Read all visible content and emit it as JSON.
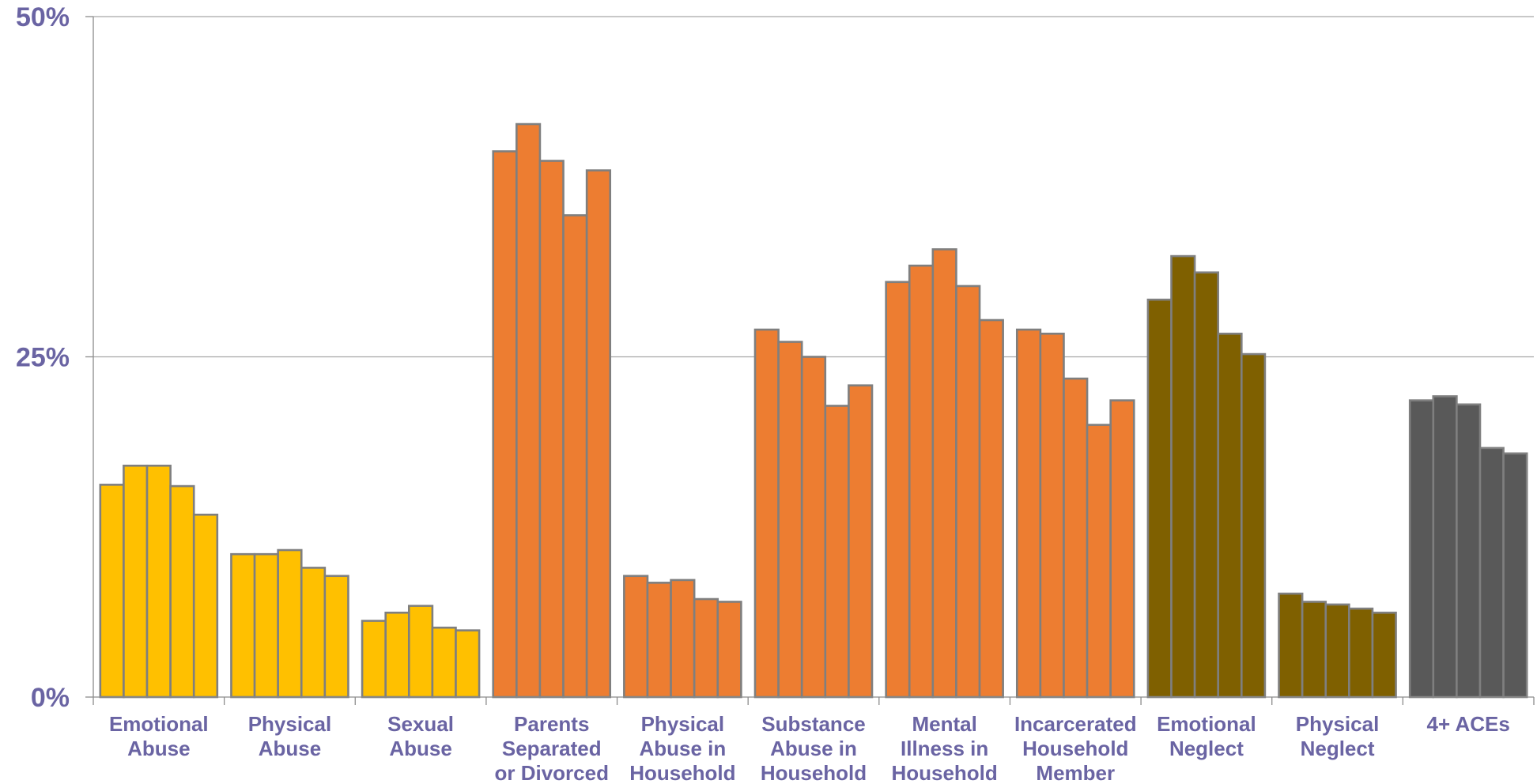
{
  "chart_data": {
    "type": "bar",
    "title": "",
    "xlabel": "",
    "ylabel": "",
    "ylim": [
      0,
      50
    ],
    "ytick_values": [
      0,
      25,
      50
    ],
    "ytick_labels": [
      "0%",
      "25%",
      "50%"
    ],
    "grid": "horizontal major gridlines",
    "legend": "none",
    "bar_edge_color": "#7f7f7f",
    "groups": [
      {
        "label_lines": [
          "Emotional",
          "Abuse"
        ],
        "color": "#ffc000",
        "values": [
          15.6,
          17.0,
          17.0,
          15.5,
          13.4
        ]
      },
      {
        "label_lines": [
          "Physical",
          "Abuse"
        ],
        "color": "#ffc000",
        "values": [
          10.5,
          10.5,
          10.8,
          9.5,
          8.9
        ]
      },
      {
        "label_lines": [
          "Sexual",
          "Abuse"
        ],
        "color": "#ffc000",
        "values": [
          5.6,
          6.2,
          6.7,
          5.1,
          4.9
        ]
      },
      {
        "label_lines": [
          "Parents",
          "Separated",
          "or Divorced"
        ],
        "color": "#ed7d31",
        "values": [
          40.1,
          42.1,
          39.4,
          35.4,
          38.7
        ]
      },
      {
        "label_lines": [
          "Physical",
          "Abuse in",
          "Household"
        ],
        "color": "#ed7d31",
        "values": [
          8.9,
          8.4,
          8.6,
          7.2,
          7.0
        ]
      },
      {
        "label_lines": [
          "Substance",
          "Abuse in",
          "Household"
        ],
        "color": "#ed7d31",
        "values": [
          27.0,
          26.1,
          25.0,
          21.4,
          22.9
        ]
      },
      {
        "label_lines": [
          "Mental",
          "Illness in",
          "Household"
        ],
        "color": "#ed7d31",
        "values": [
          30.5,
          31.7,
          32.9,
          30.2,
          27.7
        ]
      },
      {
        "label_lines": [
          "Incarcerated",
          "Household",
          "Member"
        ],
        "color": "#ed7d31",
        "values": [
          27.0,
          26.7,
          23.4,
          20.0,
          21.8
        ]
      },
      {
        "label_lines": [
          "Emotional",
          "Neglect"
        ],
        "color": "#7f6000",
        "values": [
          29.2,
          32.4,
          31.2,
          26.7,
          25.2
        ]
      },
      {
        "label_lines": [
          "Physical",
          "Neglect"
        ],
        "color": "#7f6000",
        "values": [
          7.6,
          7.0,
          6.8,
          6.5,
          6.2
        ]
      },
      {
        "label_lines": [
          "4+ ACEs"
        ],
        "color": "#595959",
        "values": [
          21.8,
          22.1,
          21.5,
          18.3,
          17.9
        ]
      }
    ]
  }
}
